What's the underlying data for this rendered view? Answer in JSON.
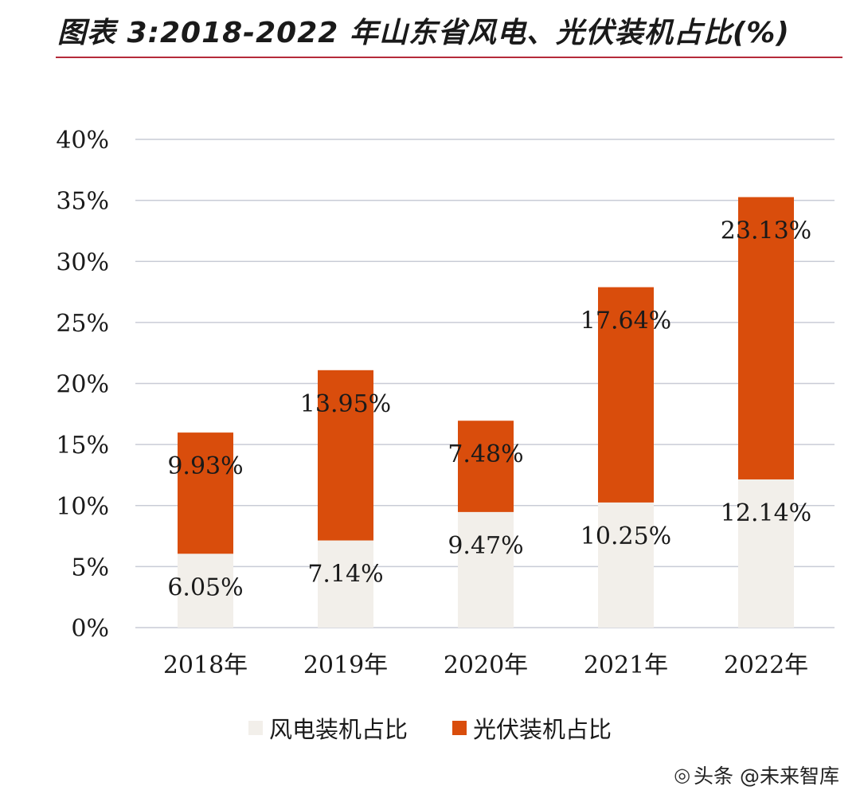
{
  "header": {
    "title": "图表 3:2018-2022 年山东省风电、光伏装机占比(%)"
  },
  "colors": {
    "accent_rule": "#b52a3a",
    "wind": "#f2efea",
    "solar": "#d94d0c",
    "grid": "#c9ccd6",
    "text": "#1a1a1a"
  },
  "chart_data": {
    "type": "bar",
    "stacked": true,
    "categories": [
      "2018年",
      "2019年",
      "2020年",
      "2021年",
      "2022年"
    ],
    "series": [
      {
        "name": "风电装机占比",
        "values": [
          6.05,
          7.14,
          9.47,
          10.25,
          12.14
        ],
        "labels": [
          "6.05%",
          "7.14%",
          "9.47%",
          "10.25%",
          "12.14%"
        ]
      },
      {
        "name": "光伏装机占比",
        "values": [
          9.93,
          13.95,
          7.48,
          17.64,
          23.13
        ],
        "labels": [
          "9.93%",
          "13.95%",
          "7.48%",
          "17.64%",
          "23.13%"
        ]
      }
    ],
    "ylim": [
      0,
      40
    ],
    "yticks": [
      0,
      5,
      10,
      15,
      20,
      25,
      30,
      35,
      40
    ],
    "ytick_labels": [
      "0%",
      "5%",
      "10%",
      "15%",
      "20%",
      "25%",
      "30%",
      "35%",
      "40%"
    ],
    "grid": true,
    "legend_position": "bottom"
  },
  "legend": {
    "wind_label": "风电装机占比",
    "solar_label": "光伏装机占比"
  },
  "watermark": {
    "text": "头条 @未来智库",
    "icon": "wechat-icon"
  }
}
